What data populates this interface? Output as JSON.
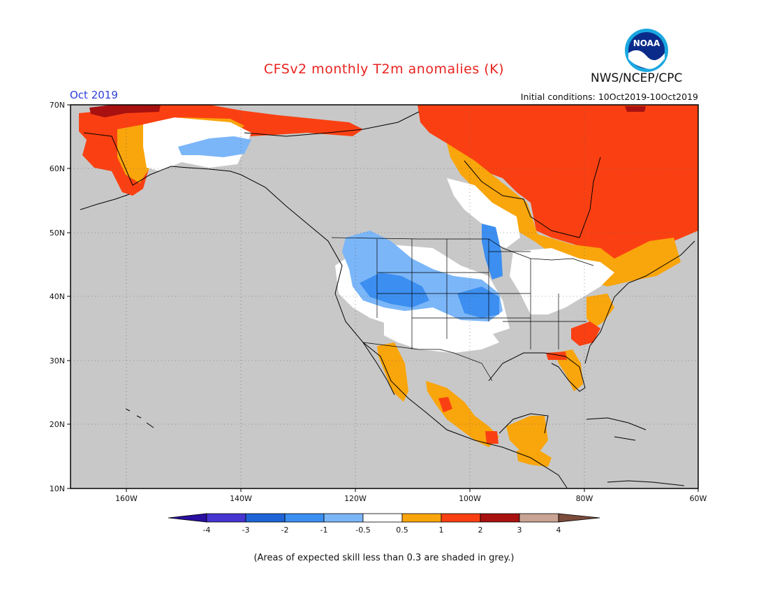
{
  "header": {
    "title": "CFSv2 monthly T2m anomalies (K)",
    "agency": "NWS/NCEP/CPC",
    "valid_month": "Oct 2019",
    "initial_conditions": "Initial conditions: 10Oct2019-10Oct2019",
    "logo_text": "NOAA"
  },
  "map": {
    "latitude_labels": [
      "70N",
      "60N",
      "50N",
      "40N",
      "30N",
      "20N",
      "10N"
    ],
    "longitude_labels": [
      "160W",
      "140W",
      "120W",
      "100W",
      "80W",
      "60W"
    ],
    "background_color": "#c8c8c8",
    "land_outline_color": "#000000"
  },
  "legend": {
    "tick_labels": [
      "-4",
      "-3",
      "-2",
      "-1",
      "-0.5",
      "0.5",
      "1",
      "2",
      "3",
      "4"
    ],
    "bin_colors": [
      "#2b0fa0",
      "#4635d0",
      "#1f64d6",
      "#3c8ff0",
      "#7bb6f8",
      "#ffffff",
      "#f9a50c",
      "#fa4012",
      "#a8110f",
      "#c9a393",
      "#7b4b3b"
    ]
  },
  "footnote": "(Areas of expected skill less than 0.3 are shaded in grey.)"
}
